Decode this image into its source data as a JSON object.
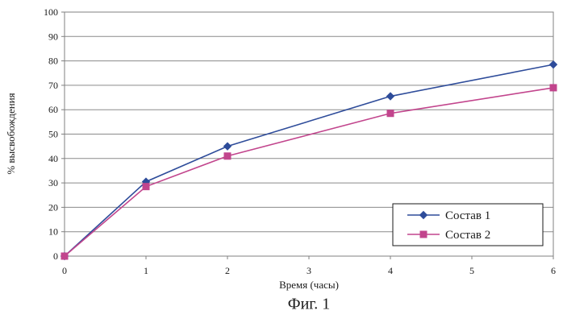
{
  "chart_data": {
    "type": "line",
    "x": [
      0,
      1,
      2,
      4,
      6
    ],
    "series": [
      {
        "name": "Состав 1",
        "values": [
          0,
          30.5,
          45,
          65.5,
          78.5
        ],
        "color": "#2E4C9A",
        "marker": "diamond"
      },
      {
        "name": "Состав 2",
        "values": [
          0,
          28.5,
          41,
          58.5,
          69
        ],
        "color": "#C2458D",
        "marker": "square"
      }
    ],
    "title": "",
    "xlabel": "Время (часы)",
    "ylabel": "% высвобождения",
    "xlim": [
      0,
      6
    ],
    "ylim": [
      0,
      100
    ],
    "xticks": [
      "0",
      "1",
      "2",
      "3",
      "4",
      "5",
      "6"
    ],
    "yticks": [
      "0",
      "10",
      "20",
      "30",
      "40",
      "50",
      "60",
      "70",
      "80",
      "90",
      "100"
    ],
    "grid": "horizontal",
    "legend_position": "bottom-right"
  },
  "caption": "Фиг. 1"
}
